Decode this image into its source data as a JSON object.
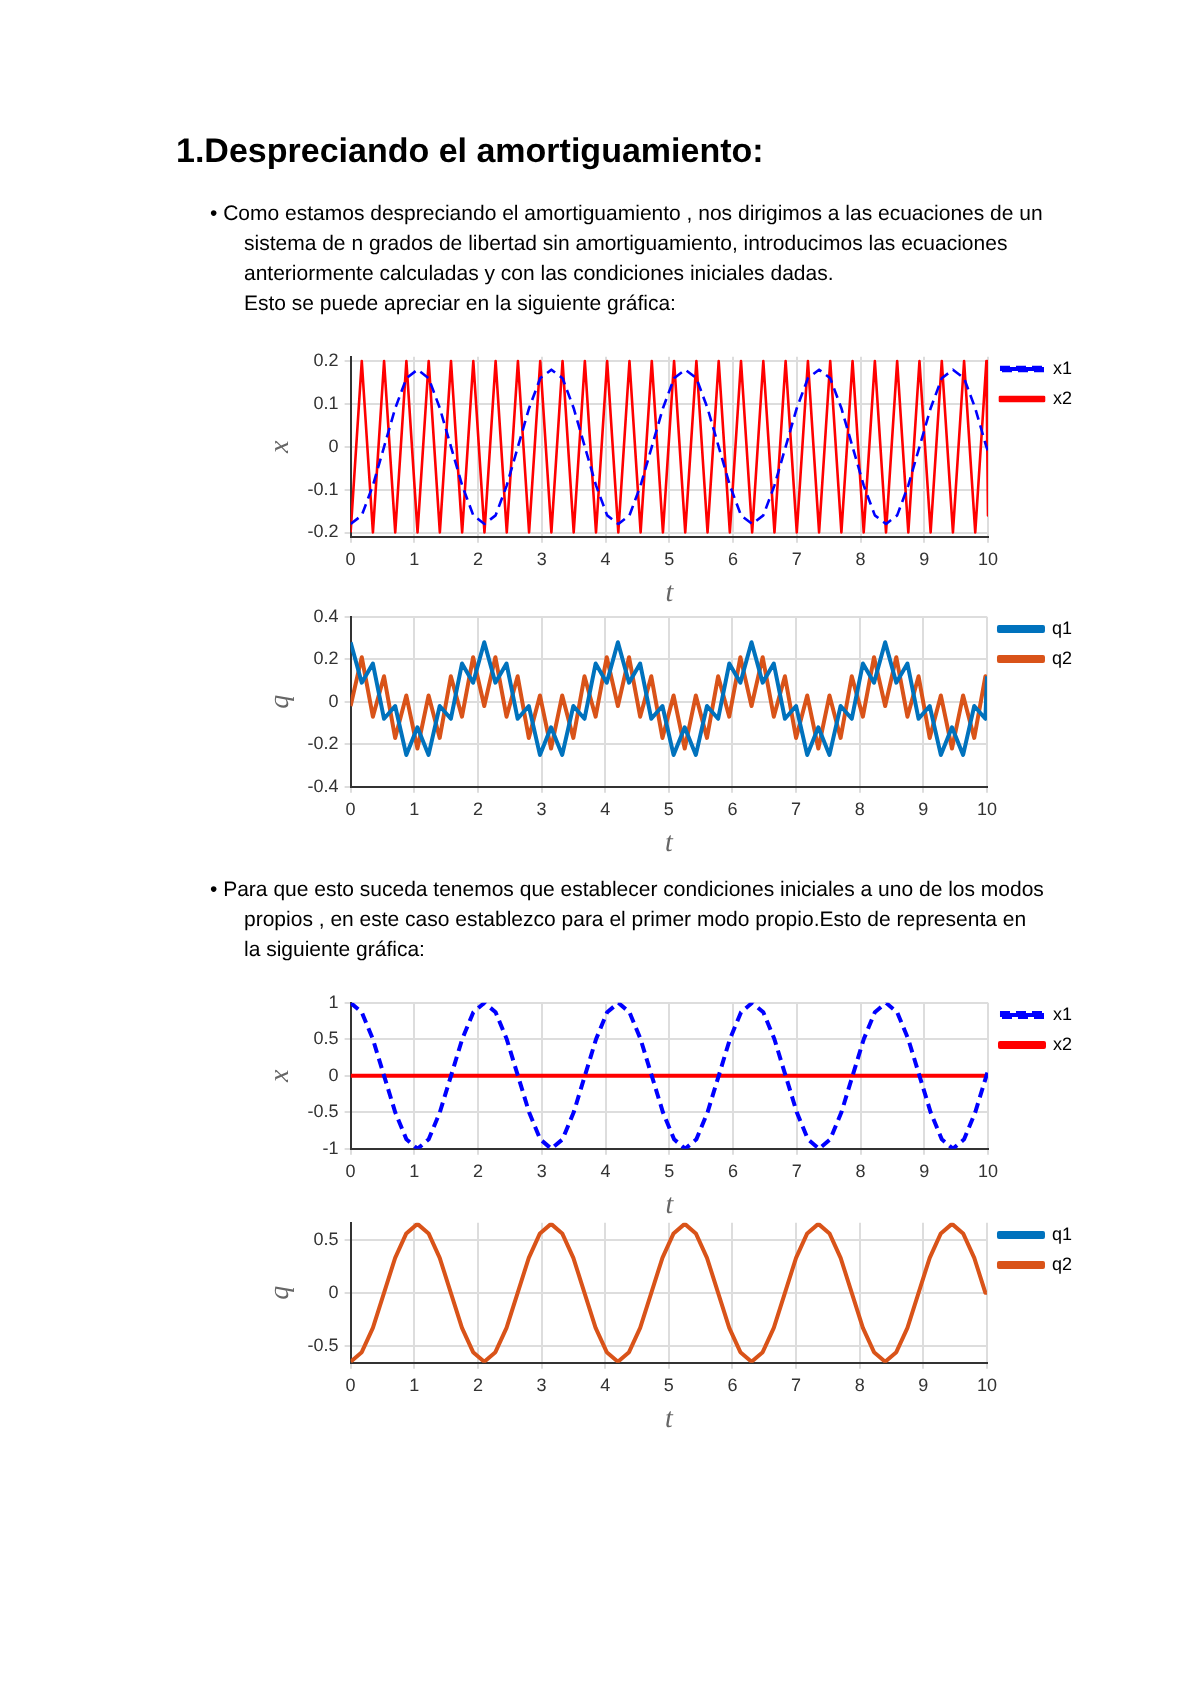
{
  "chart_data": [
    {
      "type": "line",
      "title": "1.Despreciando el amortiguamiento:",
      "annotations": [
        "• Como estamos despreciando el amortiguamiento , nos dirigimos a las ecuaciones de un sistema de n grados de libertad sin amortiguamiento, introducimos las ecuaciones anteriormente calculadas y con las condiciones iniciales dadas.",
        "Esto se puede apreciar en la siguiente gráfica:"
      ],
      "xlabel": "t",
      "ylabel": "x",
      "xlim": [
        0,
        10
      ],
      "xticks": [
        0,
        1,
        2,
        3,
        4,
        5,
        6,
        7,
        8,
        9,
        10
      ],
      "ylim": [
        -0.21,
        0.21
      ],
      "yticks": [
        -0.2,
        -0.1,
        0,
        0.1,
        0.2
      ],
      "grid": true,
      "legend": "top right",
      "marker": "none",
      "x": [
        0,
        0.175,
        0.35,
        0.525,
        0.7,
        0.875,
        1.05,
        1.225,
        1.4,
        1.575,
        1.75,
        1.925,
        2.1,
        2.275,
        2.45,
        2.625,
        2.8,
        2.975,
        3.15,
        3.325,
        3.5,
        3.675,
        3.85,
        4.025,
        4.2,
        4.375,
        4.55,
        4.725,
        4.9,
        5.075,
        5.25,
        5.425,
        5.6,
        5.775,
        5.95,
        6.125,
        6.3,
        6.475,
        6.65,
        6.825,
        7,
        7.175,
        7.35,
        7.525,
        7.7,
        7.875,
        8.05,
        8.225,
        8.4,
        8.575,
        8.75,
        8.925,
        9.1,
        9.275,
        9.45,
        9.625,
        9.8,
        9.975,
        10
      ],
      "series": [
        {
          "name": "x1",
          "color": "#0000ff",
          "line_style": "dashed",
          "values": [
            -0.18,
            -0.16,
            -0.09,
            0,
            0.09,
            0.16,
            0.18,
            0.16,
            0.09,
            0,
            -0.09,
            -0.16,
            -0.18,
            -0.16,
            -0.09,
            0,
            0.09,
            0.16,
            0.18,
            0.16,
            0.09,
            0,
            -0.09,
            -0.16,
            -0.18,
            -0.16,
            -0.09,
            0,
            0.09,
            0.16,
            0.18,
            0.16,
            0.09,
            0,
            -0.09,
            -0.16,
            -0.18,
            -0.16,
            -0.09,
            0,
            0.09,
            0.16,
            0.18,
            0.16,
            0.09,
            0,
            -0.09,
            -0.16,
            -0.18,
            -0.16,
            -0.09,
            0,
            0.09,
            0.16,
            0.18,
            0.16,
            0.09,
            0,
            -0.01
          ]
        },
        {
          "name": "x2",
          "color": "#ff0000",
          "line_style": "solid",
          "values": [
            -0.2,
            0.2,
            -0.2,
            0.2,
            -0.2,
            0.2,
            -0.2,
            0.2,
            -0.2,
            0.2,
            -0.2,
            0.2,
            -0.2,
            0.2,
            -0.2,
            0.2,
            -0.2,
            0.2,
            -0.2,
            0.2,
            -0.2,
            0.2,
            -0.2,
            0.2,
            -0.2,
            0.2,
            -0.2,
            0.2,
            -0.2,
            0.2,
            -0.2,
            0.2,
            -0.2,
            0.2,
            -0.2,
            0.2,
            -0.2,
            0.2,
            -0.2,
            0.2,
            -0.2,
            0.2,
            -0.2,
            0.2,
            -0.2,
            0.2,
            -0.2,
            0.2,
            -0.2,
            0.2,
            -0.2,
            0.2,
            -0.2,
            0.2,
            -0.2,
            0.2,
            -0.2,
            0.2,
            -0.16
          ]
        }
      ]
    },
    {
      "type": "line",
      "xlabel": "t",
      "ylabel": "q",
      "xlim": [
        0,
        10
      ],
      "xticks": [
        0,
        1,
        2,
        3,
        4,
        5,
        6,
        7,
        8,
        9,
        10
      ],
      "ylim": [
        -0.4,
        0.4
      ],
      "yticks": [
        -0.4,
        -0.2,
        0,
        0.2,
        0.4
      ],
      "grid": true,
      "legend": "top right",
      "marker": "none",
      "x": [
        0,
        0.175,
        0.35,
        0.525,
        0.7,
        0.875,
        1.05,
        1.225,
        1.4,
        1.575,
        1.75,
        1.925,
        2.1,
        2.275,
        2.45,
        2.625,
        2.8,
        2.975,
        3.15,
        3.325,
        3.5,
        3.675,
        3.85,
        4.025,
        4.2,
        4.375,
        4.55,
        4.725,
        4.9,
        5.075,
        5.25,
        5.425,
        5.6,
        5.775,
        5.95,
        6.125,
        6.3,
        6.475,
        6.65,
        6.825,
        7,
        7.175,
        7.35,
        7.525,
        7.7,
        7.875,
        8.05,
        8.225,
        8.4,
        8.575,
        8.75,
        8.925,
        9.1,
        9.275,
        9.45,
        9.625,
        9.8,
        9.975,
        10
      ],
      "series": [
        {
          "name": "q1",
          "color": "#0072bd",
          "values": [
            0.28,
            0.09,
            0.18,
            -0.08,
            -0.02,
            -0.25,
            -0.12,
            -0.25,
            -0.02,
            -0.08,
            0.18,
            0.09,
            0.28,
            0.09,
            0.18,
            -0.08,
            -0.02,
            -0.25,
            -0.12,
            -0.25,
            -0.02,
            -0.08,
            0.18,
            0.09,
            0.28,
            0.09,
            0.18,
            -0.08,
            -0.02,
            -0.25,
            -0.12,
            -0.25,
            -0.02,
            -0.08,
            0.18,
            0.09,
            0.28,
            0.09,
            0.18,
            -0.08,
            -0.02,
            -0.25,
            -0.12,
            -0.25,
            -0.02,
            -0.08,
            0.18,
            0.09,
            0.28,
            0.09,
            0.18,
            -0.08,
            -0.02,
            -0.25,
            -0.12,
            -0.25,
            -0.02,
            -0.08,
            0.12
          ]
        },
        {
          "name": "q2",
          "color": "#d95319",
          "values": [
            -0.02,
            0.21,
            -0.07,
            0.12,
            -0.17,
            0.03,
            -0.22,
            0.03,
            -0.17,
            0.12,
            -0.07,
            0.21,
            -0.02,
            0.21,
            -0.07,
            0.12,
            -0.17,
            0.03,
            -0.22,
            0.03,
            -0.17,
            0.12,
            -0.07,
            0.21,
            -0.02,
            0.21,
            -0.07,
            0.12,
            -0.17,
            0.03,
            -0.22,
            0.03,
            -0.17,
            0.12,
            -0.07,
            0.21,
            -0.02,
            0.21,
            -0.07,
            0.12,
            -0.17,
            0.03,
            -0.22,
            0.03,
            -0.17,
            0.12,
            -0.07,
            0.21,
            -0.02,
            0.21,
            -0.07,
            0.12,
            -0.17,
            0.03,
            -0.22,
            0.03,
            -0.17,
            0.12,
            -0.08
          ]
        }
      ]
    },
    {
      "type": "line",
      "annotations": [
        "• Para que esto suceda tenemos que establecer condiciones iniciales a uno de los modos propios , en este caso establezco para el primer modo propio.Esto de representa en la siguiente gráfica:"
      ],
      "xlabel": "t",
      "ylabel": "x",
      "xlim": [
        0,
        10
      ],
      "xticks": [
        0,
        1,
        2,
        3,
        4,
        5,
        6,
        7,
        8,
        9,
        10
      ],
      "ylim": [
        -1,
        1
      ],
      "yticks": [
        -1,
        -0.5,
        0,
        0.5,
        1
      ],
      "grid": true,
      "legend": "top right",
      "marker": "none",
      "x": [
        0,
        0.175,
        0.35,
        0.525,
        0.7,
        0.875,
        1.05,
        1.225,
        1.4,
        1.575,
        1.75,
        1.925,
        2.1,
        2.275,
        2.45,
        2.625,
        2.8,
        2.975,
        3.15,
        3.325,
        3.5,
        3.675,
        3.85,
        4.025,
        4.2,
        4.375,
        4.55,
        4.725,
        4.9,
        5.075,
        5.25,
        5.425,
        5.6,
        5.775,
        5.95,
        6.125,
        6.3,
        6.475,
        6.65,
        6.825,
        7,
        7.175,
        7.35,
        7.525,
        7.7,
        7.875,
        8.05,
        8.225,
        8.4,
        8.575,
        8.75,
        8.925,
        9.1,
        9.275,
        9.45,
        9.625,
        9.8,
        9.975,
        10
      ],
      "series": [
        {
          "name": "x1",
          "color": "#0000ff",
          "line_style": "dashed",
          "values": [
            1,
            0.87,
            0.5,
            0,
            -0.5,
            -0.87,
            -1,
            -0.87,
            -0.5,
            0,
            0.5,
            0.87,
            1,
            0.87,
            0.5,
            0,
            -0.5,
            -0.87,
            -1,
            -0.87,
            -0.5,
            0,
            0.5,
            0.87,
            1,
            0.87,
            0.5,
            0,
            -0.5,
            -0.87,
            -1,
            -0.87,
            -0.5,
            0,
            0.5,
            0.87,
            1,
            0.87,
            0.5,
            0,
            -0.5,
            -0.87,
            -1,
            -0.87,
            -0.5,
            0,
            0.5,
            0.87,
            1,
            0.87,
            0.5,
            0,
            -0.5,
            -0.87,
            -1,
            -0.87,
            -0.5,
            0,
            0.07
          ]
        },
        {
          "name": "x2",
          "color": "#ff0000",
          "line_style": "solid",
          "values": [
            0,
            0,
            0,
            0,
            0,
            0,
            0,
            0,
            0,
            0,
            0,
            0,
            0,
            0,
            0,
            0,
            0,
            0,
            0,
            0,
            0,
            0,
            0,
            0,
            0,
            0,
            0,
            0,
            0,
            0,
            0,
            0,
            0,
            0,
            0,
            0,
            0,
            0,
            0,
            0,
            0,
            0,
            0,
            0,
            0,
            0,
            0,
            0,
            0,
            0,
            0,
            0,
            0,
            0,
            0,
            0,
            0,
            0,
            0
          ]
        }
      ]
    },
    {
      "type": "line",
      "xlabel": "t",
      "ylabel": "q",
      "xlim": [
        0,
        10
      ],
      "xticks": [
        0,
        1,
        2,
        3,
        4,
        5,
        6,
        7,
        8,
        9,
        10
      ],
      "ylim": [
        -0.66,
        0.66
      ],
      "yticks": [
        -0.5,
        0,
        0.5
      ],
      "grid": true,
      "legend": "top right",
      "marker": "none",
      "x": [
        0,
        0.175,
        0.35,
        0.525,
        0.7,
        0.875,
        1.05,
        1.225,
        1.4,
        1.575,
        1.75,
        1.925,
        2.1,
        2.275,
        2.45,
        2.625,
        2.8,
        2.975,
        3.15,
        3.325,
        3.5,
        3.675,
        3.85,
        4.025,
        4.2,
        4.375,
        4.55,
        4.725,
        4.9,
        5.075,
        5.25,
        5.425,
        5.6,
        5.775,
        5.95,
        6.125,
        6.3,
        6.475,
        6.65,
        6.825,
        7,
        7.175,
        7.35,
        7.525,
        7.7,
        7.875,
        8.05,
        8.225,
        8.4,
        8.575,
        8.75,
        8.925,
        9.1,
        9.275,
        9.45,
        9.625,
        9.8,
        9.975,
        10
      ],
      "series": [
        {
          "name": "q1",
          "color": "#0072bd",
          "values": [
            null,
            null,
            null,
            null,
            null,
            null,
            null,
            null,
            null,
            null,
            null,
            null,
            null,
            null,
            null,
            null,
            null,
            null,
            null,
            null,
            null,
            null,
            null,
            null,
            null,
            null,
            null,
            null,
            null,
            null,
            null,
            null,
            null,
            null,
            null,
            null,
            null,
            null,
            null,
            null,
            null,
            null,
            null,
            null,
            null,
            null,
            null,
            null,
            null,
            null,
            null,
            null,
            null,
            null,
            null,
            null,
            null,
            null,
            null
          ]
        },
        {
          "name": "q2",
          "color": "#d95319",
          "values": [
            -0.65,
            -0.56,
            -0.33,
            0,
            0.33,
            0.56,
            0.65,
            0.56,
            0.33,
            0,
            -0.33,
            -0.56,
            -0.65,
            -0.56,
            -0.33,
            0,
            0.33,
            0.56,
            0.65,
            0.56,
            0.33,
            0,
            -0.33,
            -0.56,
            -0.65,
            -0.56,
            -0.33,
            0,
            0.33,
            0.56,
            0.65,
            0.56,
            0.33,
            0,
            -0.33,
            -0.56,
            -0.65,
            -0.56,
            -0.33,
            0,
            0.33,
            0.56,
            0.65,
            0.56,
            0.33,
            0,
            -0.33,
            -0.56,
            -0.65,
            -0.56,
            -0.33,
            0,
            0.33,
            0.56,
            0.65,
            0.56,
            0.33,
            0,
            0
          ]
        }
      ]
    }
  ]
}
